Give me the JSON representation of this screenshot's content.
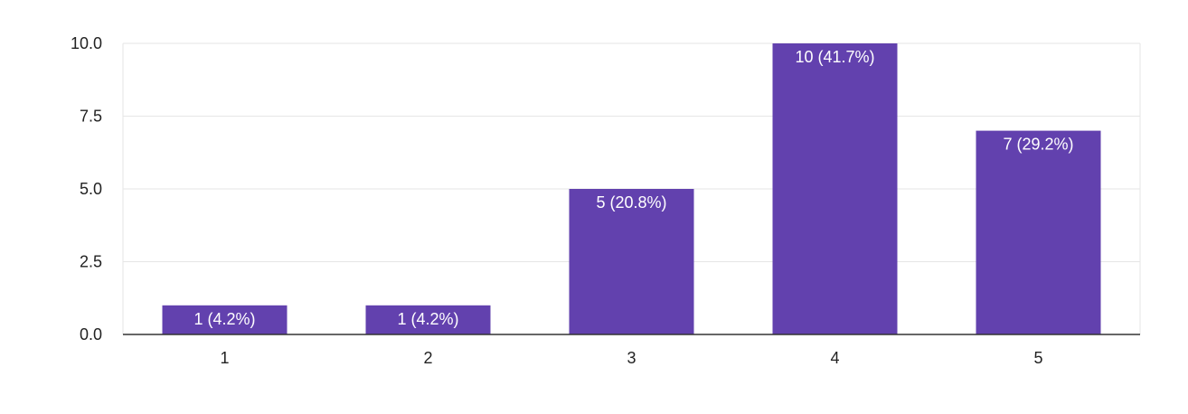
{
  "chart_data": {
    "type": "bar",
    "categories": [
      "1",
      "2",
      "3",
      "4",
      "5"
    ],
    "values": [
      1,
      1,
      5,
      10,
      7
    ],
    "data_labels": [
      "1 (4.2%)",
      "1 (4.2%)",
      "5 (20.8%)",
      "10 (41.7%)",
      "7 (29.2%)"
    ],
    "ylim": [
      0,
      10
    ],
    "yticks": [
      "0.0",
      "2.5",
      "5.0",
      "7.5",
      "10.0"
    ],
    "ytick_values": [
      0,
      2.5,
      5,
      7.5,
      10
    ],
    "grid": true,
    "bar_color": "#6241ae",
    "title": "",
    "xlabel": "",
    "ylabel": ""
  }
}
